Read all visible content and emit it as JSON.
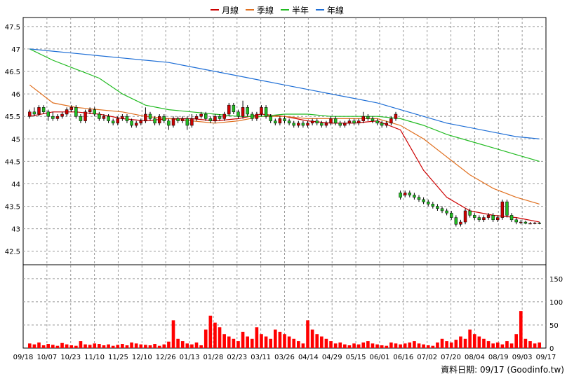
{
  "chart_data": {
    "type": "line",
    "legend": {
      "position": "top",
      "items": [
        {
          "name": "月線",
          "color": "#cc0000"
        },
        {
          "name": "季線",
          "color": "#e07020"
        },
        {
          "name": "半年",
          "color": "#22bb22"
        },
        {
          "name": "年線",
          "color": "#1f6fd6"
        }
      ]
    },
    "grid": true,
    "price_axis": {
      "ylim": [
        42.2,
        47.7
      ],
      "ticks": [
        42.5,
        43,
        43.5,
        44,
        44.5,
        45,
        45.5,
        46,
        46.5,
        47,
        47.5
      ],
      "tick_labels": [
        "42.5",
        "43",
        "43.5",
        "44",
        "44.5",
        "45",
        "45.5",
        "46",
        "46.5",
        "47",
        "47.5"
      ],
      "side": "left"
    },
    "volume_axis": {
      "ylim": [
        0,
        180
      ],
      "ticks": [
        0,
        50,
        100,
        150
      ],
      "tick_labels": [
        "0",
        "50",
        "100",
        "150"
      ],
      "side": "right"
    },
    "x_ticks": [
      "09/18",
      "10/07",
      "10/23",
      "11/10",
      "11/25",
      "12/10",
      "12/26",
      "01/13",
      "01/28",
      "02/23",
      "03/11",
      "03/26",
      "04/14",
      "04/29",
      "05/15",
      "06/01",
      "06/16",
      "07/02",
      "07/20",
      "08/04",
      "08/19",
      "09/03",
      "09/17"
    ],
    "colors": {
      "up": "#cc0000",
      "down": "#22bb22",
      "volume": "#ff0000"
    },
    "series": [
      {
        "name": "月線",
        "points": [
          [
            0,
            45.5
          ],
          [
            5,
            45.6
          ],
          [
            10,
            45.6
          ],
          [
            15,
            45.55
          ],
          [
            20,
            45.45
          ],
          [
            25,
            45.4
          ],
          [
            30,
            45.45
          ],
          [
            35,
            45.45
          ],
          [
            40,
            45.4
          ],
          [
            45,
            45.45
          ],
          [
            50,
            45.55
          ],
          [
            55,
            45.5
          ],
          [
            60,
            45.4
          ],
          [
            65,
            45.35
          ],
          [
            70,
            45.35
          ],
          [
            75,
            45.4
          ],
          [
            80,
            45.2
          ],
          [
            85,
            44.3
          ],
          [
            90,
            43.7
          ],
          [
            95,
            43.4
          ],
          [
            100,
            43.3
          ],
          [
            105,
            43.25
          ],
          [
            110,
            43.15
          ]
        ]
      },
      {
        "name": "季線",
        "points": [
          [
            0,
            46.2
          ],
          [
            5,
            45.8
          ],
          [
            10,
            45.7
          ],
          [
            15,
            45.65
          ],
          [
            20,
            45.6
          ],
          [
            25,
            45.5
          ],
          [
            30,
            45.45
          ],
          [
            35,
            45.4
          ],
          [
            40,
            45.35
          ],
          [
            45,
            45.4
          ],
          [
            50,
            45.5
          ],
          [
            55,
            45.5
          ],
          [
            60,
            45.45
          ],
          [
            65,
            45.45
          ],
          [
            70,
            45.45
          ],
          [
            75,
            45.45
          ],
          [
            80,
            45.3
          ],
          [
            85,
            45.0
          ],
          [
            90,
            44.6
          ],
          [
            95,
            44.2
          ],
          [
            100,
            43.9
          ],
          [
            105,
            43.7
          ],
          [
            110,
            43.55
          ]
        ]
      },
      {
        "name": "半年",
        "points": [
          [
            0,
            47.0
          ],
          [
            5,
            46.75
          ],
          [
            10,
            46.55
          ],
          [
            15,
            46.35
          ],
          [
            20,
            46.0
          ],
          [
            25,
            45.75
          ],
          [
            30,
            45.65
          ],
          [
            35,
            45.6
          ],
          [
            40,
            45.55
          ],
          [
            45,
            45.5
          ],
          [
            50,
            45.5
          ],
          [
            55,
            45.55
          ],
          [
            60,
            45.55
          ],
          [
            65,
            45.5
          ],
          [
            70,
            45.5
          ],
          [
            75,
            45.5
          ],
          [
            80,
            45.45
          ],
          [
            85,
            45.3
          ],
          [
            90,
            45.1
          ],
          [
            95,
            44.95
          ],
          [
            100,
            44.8
          ],
          [
            105,
            44.65
          ],
          [
            110,
            44.5
          ]
        ]
      },
      {
        "name": "年線",
        "points": [
          [
            0,
            47.0
          ],
          [
            5,
            46.95
          ],
          [
            10,
            46.9
          ],
          [
            15,
            46.85
          ],
          [
            20,
            46.8
          ],
          [
            25,
            46.75
          ],
          [
            30,
            46.7
          ],
          [
            35,
            46.6
          ],
          [
            40,
            46.5
          ],
          [
            45,
            46.4
          ],
          [
            50,
            46.3
          ],
          [
            55,
            46.2
          ],
          [
            60,
            46.1
          ],
          [
            65,
            46.0
          ],
          [
            70,
            45.9
          ],
          [
            75,
            45.8
          ],
          [
            80,
            45.65
          ],
          [
            85,
            45.5
          ],
          [
            90,
            45.35
          ],
          [
            95,
            45.25
          ],
          [
            100,
            45.15
          ],
          [
            105,
            45.05
          ],
          [
            110,
            45.0
          ]
        ]
      }
    ],
    "candles": [
      [
        45.5,
        45.6,
        45.65,
        45.45
      ],
      [
        45.6,
        45.55,
        45.7,
        45.5
      ],
      [
        45.55,
        45.7,
        45.75,
        45.5
      ],
      [
        45.7,
        45.6,
        45.75,
        45.55
      ],
      [
        45.6,
        45.5,
        45.65,
        45.4
      ],
      [
        45.5,
        45.45,
        45.6,
        45.4
      ],
      [
        45.45,
        45.5,
        45.55,
        45.4
      ],
      [
        45.5,
        45.55,
        45.6,
        45.45
      ],
      [
        45.55,
        45.65,
        45.7,
        45.5
      ],
      [
        45.65,
        45.7,
        45.75,
        45.6
      ],
      [
        45.7,
        45.5,
        45.75,
        45.45
      ],
      [
        45.5,
        45.4,
        45.55,
        45.35
      ],
      [
        45.4,
        45.6,
        45.65,
        45.35
      ],
      [
        45.6,
        45.65,
        45.7,
        45.55
      ],
      [
        45.65,
        45.55,
        45.7,
        45.5
      ],
      [
        45.55,
        45.45,
        45.6,
        45.4
      ],
      [
        45.45,
        45.5,
        45.55,
        45.4
      ],
      [
        45.5,
        45.4,
        45.55,
        45.35
      ],
      [
        45.4,
        45.35,
        45.45,
        45.3
      ],
      [
        45.35,
        45.45,
        45.5,
        45.3
      ],
      [
        45.45,
        45.5,
        45.55,
        45.4
      ],
      [
        45.5,
        45.4,
        45.55,
        45.35
      ],
      [
        45.4,
        45.3,
        45.45,
        45.25
      ],
      [
        45.3,
        45.35,
        45.4,
        45.25
      ],
      [
        45.35,
        45.4,
        45.45,
        45.3
      ],
      [
        45.4,
        45.55,
        45.7,
        45.35
      ],
      [
        45.55,
        45.45,
        45.6,
        45.4
      ],
      [
        45.45,
        45.35,
        45.5,
        45.3
      ],
      [
        45.35,
        45.5,
        45.55,
        45.3
      ],
      [
        45.5,
        45.4,
        45.55,
        45.35
      ],
      [
        45.4,
        45.3,
        45.45,
        45.2
      ],
      [
        45.3,
        45.45,
        45.5,
        45.25
      ],
      [
        45.45,
        45.4,
        45.5,
        45.35
      ],
      [
        45.4,
        45.45,
        45.5,
        45.35
      ],
      [
        45.45,
        45.3,
        45.5,
        45.2
      ],
      [
        45.3,
        45.45,
        45.55,
        45.25
      ],
      [
        45.45,
        45.5,
        45.55,
        45.4
      ],
      [
        45.5,
        45.55,
        45.6,
        45.45
      ],
      [
        45.55,
        45.45,
        45.6,
        45.4
      ],
      [
        45.45,
        45.4,
        45.5,
        45.35
      ],
      [
        45.4,
        45.5,
        45.55,
        45.35
      ],
      [
        45.5,
        45.45,
        45.55,
        45.4
      ],
      [
        45.45,
        45.55,
        45.6,
        45.4
      ],
      [
        45.55,
        45.75,
        45.8,
        45.5
      ],
      [
        45.75,
        45.6,
        45.8,
        45.55
      ],
      [
        45.6,
        45.5,
        45.65,
        45.45
      ],
      [
        45.5,
        45.7,
        45.85,
        45.45
      ],
      [
        45.7,
        45.55,
        45.75,
        45.5
      ],
      [
        45.55,
        45.45,
        45.6,
        45.4
      ],
      [
        45.45,
        45.55,
        45.6,
        45.4
      ],
      [
        45.55,
        45.7,
        45.75,
        45.5
      ],
      [
        45.7,
        45.5,
        45.75,
        45.45
      ],
      [
        45.5,
        45.4,
        45.55,
        45.35
      ],
      [
        45.4,
        45.35,
        45.45,
        45.3
      ],
      [
        45.35,
        45.45,
        45.5,
        45.3
      ],
      [
        45.45,
        45.4,
        45.5,
        45.35
      ],
      [
        45.4,
        45.35,
        45.45,
        45.3
      ],
      [
        45.35,
        45.3,
        45.4,
        45.25
      ],
      [
        45.3,
        45.35,
        45.4,
        45.25
      ],
      [
        45.35,
        45.3,
        45.4,
        45.25
      ],
      [
        45.3,
        45.35,
        45.4,
        45.25
      ],
      [
        45.35,
        45.4,
        45.45,
        45.3
      ],
      [
        45.4,
        45.35,
        45.45,
        45.3
      ],
      [
        45.35,
        45.3,
        45.4,
        45.25
      ],
      [
        45.3,
        45.35,
        45.4,
        45.25
      ],
      [
        45.35,
        45.45,
        45.5,
        45.3
      ],
      [
        45.45,
        45.35,
        45.5,
        45.3
      ],
      [
        45.35,
        45.3,
        45.4,
        45.25
      ],
      [
        45.3,
        45.35,
        45.4,
        45.25
      ],
      [
        45.35,
        45.4,
        45.45,
        45.3
      ],
      [
        45.4,
        45.35,
        45.45,
        45.3
      ],
      [
        45.35,
        45.4,
        45.45,
        45.3
      ],
      [
        45.4,
        45.5,
        45.6,
        45.35
      ],
      [
        45.5,
        45.45,
        45.55,
        45.4
      ],
      [
        45.45,
        45.4,
        45.5,
        45.35
      ],
      [
        45.4,
        45.35,
        45.45,
        45.3
      ],
      [
        45.35,
        45.3,
        45.4,
        45.25
      ],
      [
        45.3,
        45.35,
        45.4,
        45.25
      ],
      [
        45.35,
        45.45,
        45.5,
        45.3
      ],
      [
        45.45,
        45.55,
        45.6,
        45.4
      ],
      [
        43.8,
        43.7,
        43.85,
        43.65
      ],
      [
        43.75,
        43.8,
        43.85,
        43.7
      ],
      [
        43.8,
        43.75,
        43.85,
        43.7
      ],
      [
        43.75,
        43.7,
        43.8,
        43.65
      ],
      [
        43.7,
        43.65,
        43.75,
        43.6
      ],
      [
        43.65,
        43.6,
        43.7,
        43.55
      ],
      [
        43.6,
        43.55,
        43.65,
        43.5
      ],
      [
        43.55,
        43.5,
        43.6,
        43.45
      ],
      [
        43.5,
        43.45,
        43.55,
        43.4
      ],
      [
        43.45,
        43.4,
        43.5,
        43.35
      ],
      [
        43.4,
        43.35,
        43.45,
        43.3
      ],
      [
        43.35,
        43.25,
        43.4,
        43.2
      ],
      [
        43.25,
        43.1,
        43.3,
        43.05
      ],
      [
        43.1,
        43.15,
        43.2,
        43.05
      ],
      [
        43.15,
        43.4,
        43.45,
        43.1
      ],
      [
        43.4,
        43.3,
        43.45,
        43.25
      ],
      [
        43.3,
        43.25,
        43.35,
        43.2
      ],
      [
        43.25,
        43.2,
        43.3,
        43.15
      ],
      [
        43.2,
        43.25,
        43.3,
        43.15
      ],
      [
        43.25,
        43.3,
        43.35,
        43.2
      ],
      [
        43.3,
        43.2,
        43.35,
        43.15
      ],
      [
        43.2,
        43.25,
        43.3,
        43.15
      ],
      [
        43.25,
        43.6,
        43.65,
        43.2
      ],
      [
        43.6,
        43.3,
        43.65,
        43.25
      ],
      [
        43.3,
        43.2,
        43.35,
        43.15
      ],
      [
        43.2,
        43.15,
        43.25,
        43.1
      ],
      [
        43.15,
        43.15,
        43.2,
        43.1
      ],
      [
        43.15,
        43.12,
        43.18,
        43.1
      ],
      [
        43.12,
        43.12,
        43.15,
        43.1
      ],
      [
        43.12,
        43.13,
        43.15,
        43.1
      ],
      [
        43.13,
        43.12,
        43.15,
        43.1
      ]
    ],
    "volume": [
      10,
      8,
      12,
      6,
      9,
      7,
      5,
      11,
      8,
      6,
      5,
      15,
      8,
      7,
      10,
      9,
      6,
      8,
      5,
      7,
      9,
      6,
      12,
      10,
      8,
      7,
      6,
      9,
      5,
      8,
      14,
      60,
      20,
      15,
      10,
      8,
      12,
      6,
      40,
      70,
      55,
      45,
      30,
      25,
      20,
      15,
      35,
      25,
      20,
      45,
      30,
      25,
      20,
      40,
      35,
      30,
      25,
      20,
      15,
      10,
      60,
      40,
      30,
      25,
      20,
      15,
      10,
      12,
      8,
      6,
      10,
      8,
      12,
      15,
      10,
      8,
      6,
      5,
      12,
      10,
      8,
      10,
      12,
      15,
      10,
      8,
      6,
      5,
      12,
      20,
      15,
      12,
      18,
      25,
      20,
      40,
      30,
      25,
      20,
      15,
      10,
      12,
      8,
      15,
      10,
      30,
      80,
      20,
      15,
      10,
      12
    ]
  },
  "footer": {
    "note": "資料日期: 09/17 (Goodinfo.tw)"
  }
}
